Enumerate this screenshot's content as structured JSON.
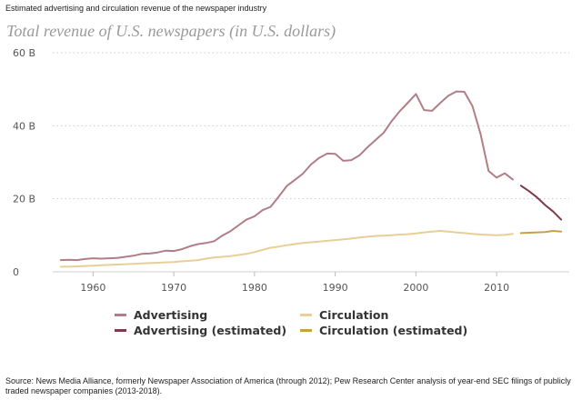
{
  "header": {
    "supertitle": "Estimated advertising and circulation revenue of the newspaper industry",
    "title": "Total revenue of U.S. newspapers (in U.S. dollars)"
  },
  "footer": {
    "source": "Source: News Media Alliance, formerly Newspaper Association of America (through 2012); Pew Research Center analysis of year-end SEC filings of publicly traded newspaper companies (2013-2018)."
  },
  "colors": {
    "advertising": "#b07e87",
    "advertising_estimated": "#7d3a4b",
    "circulation": "#e6cf98",
    "circulation_estimated": "#c9a04a"
  },
  "chart_data": {
    "type": "line",
    "xlim": [
      1955,
      2019
    ],
    "ylim": [
      0,
      60
    ],
    "x_ticks": [
      1960,
      1970,
      1980,
      1990,
      2000,
      2010
    ],
    "y_ticks": [
      {
        "value": 0,
        "label": "0"
      },
      {
        "value": 20,
        "label": "20 B"
      },
      {
        "value": 40,
        "label": "40 B"
      },
      {
        "value": 60,
        "label": "60 B"
      }
    ],
    "grid": true,
    "legend_position": "bottom",
    "series": [
      {
        "name": "Advertising",
        "color_key": "advertising",
        "x": [
          1956,
          1957,
          1958,
          1959,
          1960,
          1961,
          1962,
          1963,
          1964,
          1965,
          1966,
          1967,
          1968,
          1969,
          1970,
          1971,
          1972,
          1973,
          1974,
          1975,
          1976,
          1977,
          1978,
          1979,
          1980,
          1981,
          1982,
          1983,
          1984,
          1985,
          1986,
          1987,
          1988,
          1989,
          1990,
          1991,
          1992,
          1993,
          1994,
          1995,
          1996,
          1997,
          1998,
          1999,
          2000,
          2001,
          2002,
          2003,
          2004,
          2005,
          2006,
          2007,
          2008,
          2009,
          2010,
          2011,
          2012
        ],
        "y": [
          3.2,
          3.3,
          3.2,
          3.5,
          3.7,
          3.6,
          3.7,
          3.8,
          4.1,
          4.4,
          4.9,
          5.0,
          5.3,
          5.8,
          5.7,
          6.2,
          7.0,
          7.6,
          7.9,
          8.4,
          9.9,
          11.1,
          12.7,
          14.3,
          15.2,
          16.9,
          17.8,
          20.6,
          23.5,
          25.2,
          26.9,
          29.4,
          31.2,
          32.4,
          32.3,
          30.4,
          30.6,
          31.9,
          34.1,
          36.1,
          38.1,
          41.3,
          44.0,
          46.3,
          48.7,
          44.3,
          44.1,
          46.2,
          48.2,
          49.4,
          49.3,
          45.4,
          37.8,
          27.6,
          25.8,
          27.0,
          25.3
        ]
      },
      {
        "name": "Advertising (estimated)",
        "color_key": "advertising_estimated",
        "x": [
          2013,
          2014,
          2015,
          2016,
          2017,
          2018
        ],
        "y": [
          23.6,
          22.1,
          20.4,
          18.3,
          16.5,
          14.3
        ]
      },
      {
        "name": "Circulation",
        "color_key": "circulation",
        "x": [
          1956,
          1957,
          1958,
          1959,
          1960,
          1961,
          1962,
          1963,
          1964,
          1965,
          1966,
          1967,
          1968,
          1969,
          1970,
          1971,
          1972,
          1973,
          1974,
          1975,
          1976,
          1977,
          1978,
          1979,
          1980,
          1981,
          1982,
          1983,
          1984,
          1985,
          1986,
          1987,
          1988,
          1989,
          1990,
          1991,
          1992,
          1993,
          1994,
          1995,
          1996,
          1997,
          1998,
          1999,
          2000,
          2001,
          2002,
          2003,
          2004,
          2005,
          2006,
          2007,
          2008,
          2009,
          2010,
          2011,
          2012
        ],
        "y": [
          1.4,
          1.4,
          1.5,
          1.6,
          1.7,
          1.8,
          1.9,
          2.0,
          2.1,
          2.2,
          2.3,
          2.4,
          2.5,
          2.6,
          2.7,
          2.9,
          3.0,
          3.2,
          3.6,
          3.9,
          4.1,
          4.3,
          4.6,
          4.9,
          5.4,
          6.0,
          6.6,
          6.9,
          7.3,
          7.6,
          7.9,
          8.1,
          8.3,
          8.5,
          8.7,
          8.9,
          9.1,
          9.4,
          9.6,
          9.8,
          9.9,
          10.0,
          10.2,
          10.3,
          10.5,
          10.8,
          11.0,
          11.2,
          11.0,
          10.8,
          10.6,
          10.4,
          10.2,
          10.1,
          10.0,
          10.1,
          10.4
        ]
      },
      {
        "name": "Circulation (estimated)",
        "color_key": "circulation_estimated",
        "x": [
          2013,
          2014,
          2015,
          2016,
          2017,
          2018
        ],
        "y": [
          10.6,
          10.7,
          10.8,
          10.9,
          11.2,
          11.0
        ]
      }
    ]
  }
}
